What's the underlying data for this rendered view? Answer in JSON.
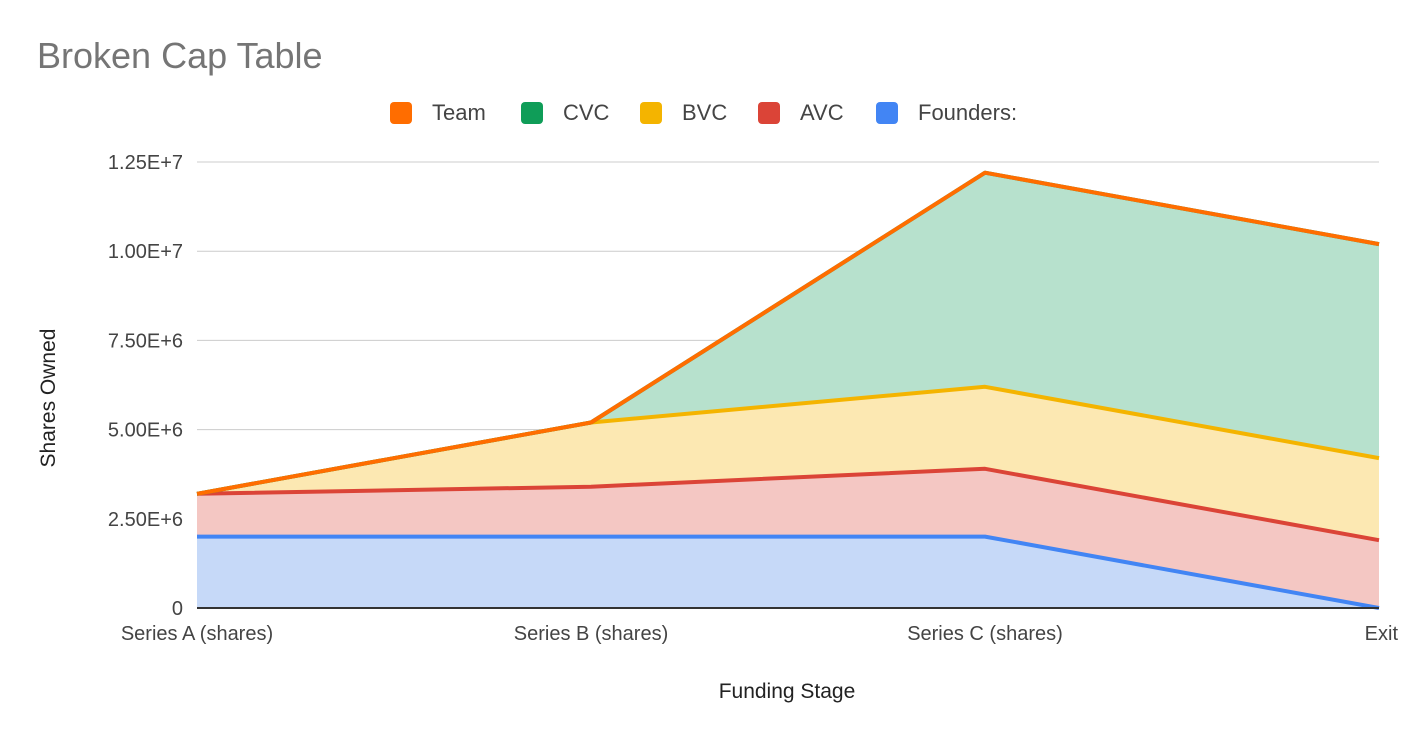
{
  "chart_data": {
    "type": "area",
    "stacked": true,
    "title": "Broken Cap Table",
    "xlabel": "Funding Stage",
    "ylabel": "Shares Owned",
    "categories": [
      "Series A (shares)",
      "Series B (shares)",
      "Series C (shares)",
      "Exit"
    ],
    "ylim": [
      0,
      12500000
    ],
    "yticks": [
      0,
      2500000,
      5000000,
      7500000,
      10000000,
      12500000
    ],
    "ytick_labels": [
      "0",
      "2.50E+6",
      "5.00E+6",
      "7.50E+6",
      "1.00E+7",
      "1.25E+7"
    ],
    "grid": true,
    "legend_position": "top",
    "legend_order": [
      "Team",
      "CVC",
      "BVC",
      "AVC",
      "Founders:"
    ],
    "series": [
      {
        "name": "Founders:",
        "color": "#4285f4",
        "fill": "#c6d9f8",
        "values": [
          2000000,
          2000000,
          2000000,
          0
        ]
      },
      {
        "name": "AVC",
        "color": "#db4437",
        "fill": "#f4c7c3",
        "values": [
          1200000,
          1400000,
          1900000,
          1900000
        ]
      },
      {
        "name": "BVC",
        "color": "#f4b400",
        "fill": "#fce8b2",
        "values": [
          0,
          1800000,
          2300000,
          2300000
        ]
      },
      {
        "name": "CVC",
        "color": "#0f9d58",
        "fill": "#b7e1cd",
        "values": [
          0,
          0,
          6000000,
          6000000
        ]
      },
      {
        "name": "Team",
        "color": "#ff6d00",
        "fill": "#ffcfa8",
        "values": [
          0,
          0,
          0,
          0
        ]
      }
    ]
  }
}
